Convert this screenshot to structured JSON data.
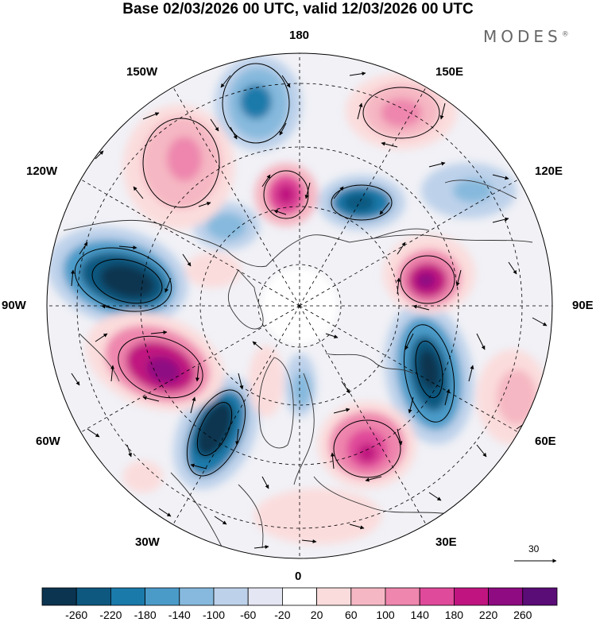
{
  "header": {
    "title": "Base 02/03/2026 00 UTC, valid 12/03/2026 00 UTC",
    "brand": "MODES",
    "brand_mark": "®"
  },
  "map": {
    "projection": "north polar stereographic",
    "longitude_labels": {
      "top": "180",
      "bottom": "0",
      "left": "90W",
      "right": "90E",
      "upper_left_outer": "150W",
      "upper_left_inner": "120W",
      "upper_right_outer": "150E",
      "upper_right_inner": "120E",
      "lower_left_inner": "60W",
      "lower_left_outer": "30W",
      "lower_right_inner": "60E",
      "lower_right_outer": "30E"
    },
    "reference_vector": "30",
    "anomaly_centers": [
      {
        "sign": "negative",
        "location": "North Pacific near 170W"
      },
      {
        "sign": "positive",
        "location": "Alaska / Bering region"
      },
      {
        "sign": "positive",
        "location": "Gulf of Alaska"
      },
      {
        "sign": "negative",
        "location": "western Canada"
      },
      {
        "sign": "negative",
        "location": "central North America"
      },
      {
        "sign": "positive",
        "location": "eastern Canada / Labrador"
      },
      {
        "sign": "negative",
        "location": "western North Atlantic"
      },
      {
        "sign": "positive",
        "location": "eastern Europe"
      },
      {
        "sign": "negative",
        "location": "central Siberia"
      },
      {
        "sign": "positive",
        "location": "eastern Siberia"
      },
      {
        "sign": "negative",
        "location": "Chukotka"
      },
      {
        "sign": "positive",
        "location": "western North Pacific"
      }
    ]
  },
  "colorbar": {
    "labels": [
      "-260",
      "-220",
      "-180",
      "-140",
      "-100",
      "-60",
      "-20",
      "20",
      "60",
      "100",
      "140",
      "180",
      "220",
      "260"
    ],
    "colors": [
      "#0b3450",
      "#0e5880",
      "#1a7aaa",
      "#4b9bc9",
      "#86b9dd",
      "#bdd1ea",
      "#e5e6f3",
      "#ffffff",
      "#fbdcdc",
      "#f5b7c3",
      "#ee86ad",
      "#e04a9a",
      "#c01580",
      "#8e0b82",
      "#5a0c77"
    ]
  }
}
